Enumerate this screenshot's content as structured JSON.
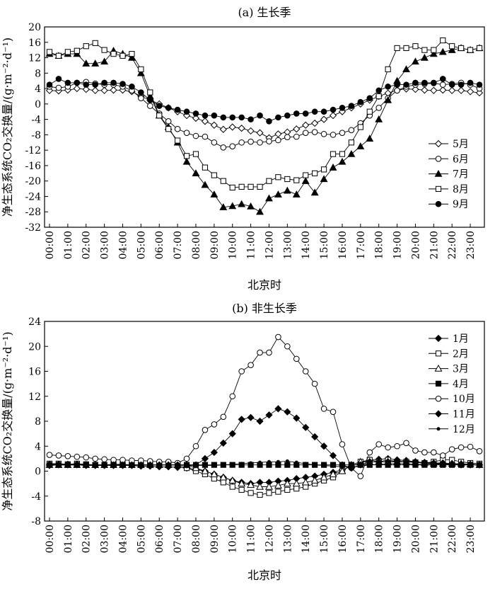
{
  "chart_data": [
    {
      "type": "line",
      "title": "(a) 生长季",
      "xlabel": "北京时",
      "ylabel": "净生态系统CO₂交换量/(g·m⁻²·d⁻¹)",
      "ylim": [
        -32,
        20
      ],
      "yticks": [
        20,
        16,
        12,
        8,
        4,
        0,
        -4,
        -8,
        -12,
        -16,
        -20,
        -24,
        -28,
        -32
      ],
      "x_tick_labels": [
        "00:00",
        "01:00",
        "02:00",
        "03:00",
        "04:00",
        "05:00",
        "06:00",
        "07:00",
        "08:00",
        "09:00",
        "10:00",
        "11:00",
        "12:00",
        "13:00",
        "14:00",
        "15:00",
        "16:00",
        "17:00",
        "18:00",
        "19:00",
        "20:00",
        "21:00",
        "22:00",
        "23:00"
      ],
      "x_step_hours": 0.5,
      "grid": false,
      "legend_position": "right",
      "series": [
        {
          "name": "5月",
          "marker": "diamond-open",
          "values": [
            3.5,
            3.4,
            3.6,
            4.0,
            3.8,
            3.5,
            3.5,
            3.6,
            3.6,
            3.2,
            2.0,
            1.0,
            0.0,
            -1.0,
            -2.0,
            -3.0,
            -3.7,
            -4.5,
            -5.5,
            -6.6,
            -6.0,
            -6.3,
            -7.0,
            -7.5,
            -8.8,
            -7.8,
            -7.3,
            -6.5,
            -5.5,
            -5.0,
            -4.0,
            -3.0,
            -2.0,
            -1.0,
            0.0,
            1.0,
            2.0,
            2.8,
            3.6,
            3.9,
            3.8,
            3.6,
            3.5,
            3.6,
            3.5,
            3.5,
            3.2,
            2.9
          ]
        },
        {
          "name": "6月",
          "marker": "circle-open",
          "values": [
            4.5,
            4.2,
            4.5,
            5.5,
            5.7,
            5.3,
            5.0,
            5.0,
            4.5,
            3.5,
            1.5,
            -0.5,
            -2.5,
            -4.5,
            -6.5,
            -7.5,
            -8.3,
            -8.5,
            -10.0,
            -11.3,
            -11.0,
            -10.0,
            -9.8,
            -10.0,
            -9.7,
            -9.4,
            -8.6,
            -8.5,
            -7.5,
            -7.3,
            -7.8,
            -8.0,
            -7.5,
            -6.8,
            -5.0,
            -3.0,
            -1.0,
            1.5,
            3.5,
            4.5,
            5.0,
            5.2,
            5.4,
            5.0,
            5.2,
            5.5,
            5.0,
            4.0
          ]
        },
        {
          "name": "7月",
          "marker": "triangle-filled",
          "values": [
            13.0,
            12.5,
            13.0,
            13.0,
            10.5,
            10.5,
            11.0,
            13.8,
            13.0,
            12.0,
            8.0,
            2.0,
            -3.0,
            -6.0,
            -10.0,
            -15.0,
            -18.0,
            -21.0,
            -23.5,
            -26.8,
            -26.5,
            -26.0,
            -26.6,
            -28.0,
            -24.5,
            -23.5,
            -22.5,
            -23.5,
            -20.0,
            -23.0,
            -19.5,
            -16.5,
            -15.0,
            -13.0,
            -11.0,
            -9.0,
            -4.0,
            1.0,
            6.0,
            9.0,
            11.0,
            12.0,
            13.0,
            13.5,
            14.0,
            14.5,
            14.0,
            14.5
          ]
        },
        {
          "name": "8月",
          "marker": "square-open",
          "values": [
            13.5,
            12.5,
            13.5,
            13.8,
            15.0,
            15.8,
            14.0,
            13.0,
            12.5,
            13.0,
            9.0,
            3.0,
            -3.0,
            -6.5,
            -9.5,
            -13.5,
            -13.0,
            -16.5,
            -18.5,
            -20.0,
            -21.7,
            -21.5,
            -21.5,
            -21.5,
            -20.0,
            -19.0,
            -19.5,
            -19.8,
            -18.5,
            -18.0,
            -17.0,
            -13.0,
            -13.0,
            -10.0,
            -6.0,
            -2.0,
            2.0,
            9.0,
            14.5,
            14.5,
            15.0,
            14.0,
            14.0,
            16.5,
            15.0,
            14.5,
            14.0,
            14.5
          ]
        },
        {
          "name": "9月",
          "marker": "circle-filled",
          "values": [
            5.0,
            6.5,
            5.5,
            5.5,
            5.0,
            5.0,
            5.5,
            5.5,
            5.2,
            4.5,
            3.0,
            1.0,
            -0.5,
            -1.0,
            -1.5,
            -2.0,
            -2.5,
            -3.0,
            -3.0,
            -3.5,
            -3.5,
            -3.5,
            -4.0,
            -3.0,
            -4.5,
            -3.5,
            -3.0,
            -2.5,
            -2.5,
            -2.0,
            -2.0,
            -1.5,
            -1.0,
            -0.5,
            0.5,
            1.5,
            3.5,
            4.5,
            5.0,
            5.0,
            5.5,
            5.5,
            5.5,
            6.5,
            5.0,
            5.0,
            5.5,
            5.0
          ]
        }
      ]
    },
    {
      "type": "line",
      "title": "(b) 非生长季",
      "xlabel": "北京时",
      "ylabel": "净生态系统CO₂交换量/(g·m⁻²·d⁻¹)",
      "ylim": [
        -8,
        24
      ],
      "yticks": [
        24,
        20,
        16,
        12,
        8,
        4,
        0,
        -4,
        -8
      ],
      "x_tick_labels": [
        "00:00",
        "01:00",
        "02:00",
        "03:00",
        "04:00",
        "05:00",
        "06:00",
        "07:00",
        "08:00",
        "09:00",
        "10:00",
        "11:00",
        "12:00",
        "13:00",
        "14:00",
        "15:00",
        "16:00",
        "17:00",
        "18:00",
        "19:00",
        "20:00",
        "21:00",
        "22:00",
        "23:00"
      ],
      "x_step_hours": 0.5,
      "grid": false,
      "legend_position": "top-right",
      "series": [
        {
          "name": "1月",
          "marker": "diamond-filled",
          "values": [
            0.9,
            1.0,
            1.0,
            1.0,
            0.9,
            0.9,
            0.9,
            0.9,
            0.9,
            0.9,
            0.8,
            0.8,
            0.7,
            0.7,
            0.6,
            0.5,
            0.3,
            0.0,
            -0.5,
            -1.0,
            -1.5,
            -1.8,
            -2.0,
            -1.8,
            -1.8,
            -1.6,
            -1.5,
            -1.2,
            -1.0,
            -0.8,
            -0.5,
            -0.2,
            0.2,
            0.8,
            1.3,
            1.8,
            1.9,
            2.0,
            1.8,
            1.7,
            1.5,
            1.3,
            1.2,
            1.2,
            1.1,
            1.0,
            1.0,
            1.0
          ]
        },
        {
          "name": "2月",
          "marker": "square-open",
          "values": [
            1.2,
            1.2,
            1.1,
            1.2,
            1.1,
            1.0,
            1.0,
            1.1,
            1.1,
            1.0,
            1.0,
            1.0,
            1.0,
            1.0,
            1.0,
            0.5,
            0.0,
            -0.5,
            -1.2,
            -1.8,
            -2.5,
            -3.0,
            -3.5,
            -3.8,
            -3.5,
            -3.3,
            -3.0,
            -2.8,
            -2.5,
            -2.0,
            -1.5,
            -1.0,
            0.0,
            1.0,
            1.5,
            1.8,
            1.5,
            1.8,
            1.5,
            1.5,
            1.4,
            1.3,
            1.5,
            1.8,
            1.8,
            1.5,
            1.3,
            1.2
          ]
        },
        {
          "name": "3月",
          "marker": "triangle-open",
          "values": [
            1.0,
            1.0,
            1.0,
            1.0,
            1.0,
            1.0,
            1.0,
            1.0,
            1.0,
            1.0,
            1.0,
            1.0,
            1.0,
            1.0,
            1.0,
            1.0,
            0.5,
            0.0,
            -0.5,
            -1.0,
            -1.5,
            -2.0,
            -2.2,
            -2.5,
            -2.5,
            -2.3,
            -2.0,
            -2.0,
            -1.8,
            -1.5,
            -1.0,
            -0.5,
            0.0,
            1.0,
            1.5,
            1.5,
            1.5,
            1.5,
            1.5,
            1.5,
            1.4,
            1.3,
            1.2,
            1.2,
            1.2,
            1.2,
            1.1,
            1.0
          ]
        },
        {
          "name": "4月",
          "marker": "square-filled",
          "values": [
            1.0,
            1.0,
            1.0,
            1.0,
            1.0,
            1.0,
            1.0,
            1.0,
            1.0,
            1.0,
            1.0,
            1.0,
            1.0,
            1.0,
            1.0,
            1.0,
            1.0,
            1.0,
            1.0,
            1.0,
            1.0,
            1.0,
            1.0,
            1.0,
            1.0,
            1.0,
            1.0,
            1.0,
            1.0,
            1.0,
            1.0,
            1.0,
            1.0,
            1.0,
            1.0,
            1.0,
            1.0,
            1.0,
            1.0,
            1.0,
            1.0,
            1.0,
            1.0,
            1.0,
            1.0,
            1.0,
            1.0,
            1.0
          ]
        },
        {
          "name": "10月",
          "marker": "circle-open",
          "values": [
            2.6,
            2.5,
            2.4,
            2.3,
            2.2,
            2.0,
            1.9,
            1.8,
            1.8,
            1.7,
            1.7,
            1.6,
            1.5,
            1.5,
            1.3,
            2.0,
            4.0,
            6.6,
            7.5,
            8.7,
            12.0,
            16.0,
            17.0,
            19.0,
            19.0,
            21.5,
            20.0,
            18.0,
            16.0,
            14.0,
            10.0,
            9.5,
            4.3,
            0.5,
            -0.8,
            3.0,
            4.3,
            3.8,
            4.0,
            4.5,
            3.3,
            3.0,
            3.0,
            2.5,
            3.5,
            3.8,
            3.9,
            3.2
          ]
        },
        {
          "name": "11月",
          "marker": "diamond-filled",
          "values": [
            1.1,
            1.1,
            1.1,
            1.1,
            1.0,
            1.0,
            1.0,
            1.0,
            1.0,
            1.0,
            1.0,
            1.0,
            1.0,
            1.0,
            1.0,
            1.0,
            1.0,
            2.0,
            3.0,
            4.5,
            6.0,
            8.3,
            8.6,
            8.0,
            9.0,
            10.0,
            9.5,
            8.5,
            7.0,
            5.5,
            4.0,
            2.5,
            1.0,
            0.5,
            1.0,
            1.5,
            1.5,
            1.5,
            1.6,
            1.5,
            1.5,
            1.4,
            1.3,
            1.3,
            1.2,
            1.1,
            1.1,
            1.0
          ]
        },
        {
          "name": "12月",
          "marker": "dot-small",
          "values": [
            1.0,
            1.0,
            1.0,
            1.0,
            1.0,
            1.0,
            1.0,
            1.0,
            1.0,
            1.0,
            1.0,
            1.0,
            1.0,
            1.0,
            1.0,
            0.9,
            0.9,
            0.9,
            0.9,
            1.0,
            1.1,
            1.2,
            1.3,
            1.4,
            1.5,
            1.5,
            1.6,
            1.4,
            1.2,
            1.0,
            0.9,
            0.8,
            0.7,
            0.6,
            0.8,
            1.0,
            1.1,
            1.2,
            1.2,
            1.2,
            1.1,
            1.1,
            1.1,
            1.1,
            1.0,
            1.0,
            1.0,
            1.0
          ]
        }
      ]
    }
  ]
}
